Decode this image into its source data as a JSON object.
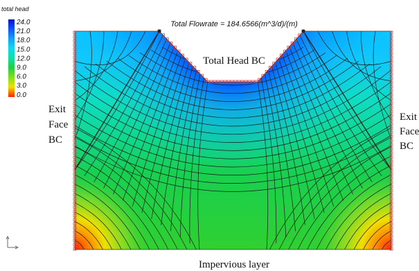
{
  "legend": {
    "title": "total head",
    "ticks": [
      "24.0",
      "21.0",
      "18.0",
      "15.0",
      "12.0",
      "9.0",
      "6.0",
      "3.0",
      "0.0"
    ],
    "colors": [
      "#0010c8",
      "#1050ff",
      "#10a0ff",
      "#10d8f0",
      "#10e0a0",
      "#20d040",
      "#80e020",
      "#f0e000",
      "#ff2000"
    ]
  },
  "header": {
    "flowrate": "Total Flowrate = 184.6566(m^3/d)/(m)"
  },
  "labels": {
    "total_head_bc": "Total Head BC",
    "exit_left": [
      "Exit",
      "Face",
      "BC"
    ],
    "exit_right": [
      "Exit",
      "Face",
      "BC"
    ],
    "impervious": "Impervious layer"
  },
  "colors": {
    "contour_line": "#1a1a1a",
    "boundary_marker": "#d04040",
    "node_marker": "#222222"
  },
  "icons": {
    "axis_triad": "axis-triad-icon"
  }
}
